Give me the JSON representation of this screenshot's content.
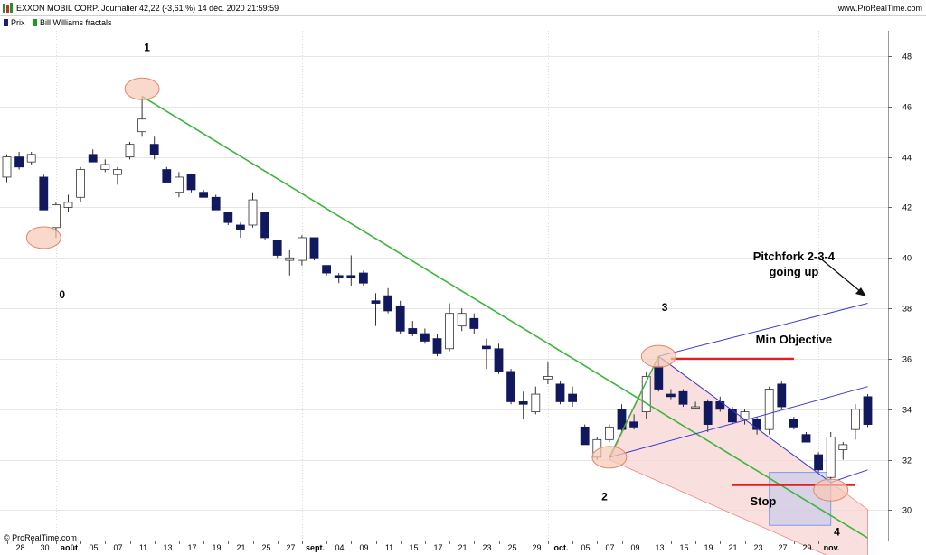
{
  "header": {
    "title": "EXXON MOBIL CORP. Journalier 42,22 (-3,61 %) 14 déc. 2020 21:59:59",
    "site": "www.ProRealTime.com",
    "legend": [
      {
        "label": "Prix",
        "color": "#1a1f6e"
      },
      {
        "label": "Bill Williams fractals",
        "color": "#1e9a1e"
      }
    ]
  },
  "footer": {
    "copyright": "© ProRealTime.com"
  },
  "colors": {
    "bull_body": "#ffffff",
    "bear_body": "#10185e",
    "trendline": "#3cb53c",
    "pitchfork": "#3a3ad0",
    "level": "#e02020",
    "fractal_fill": "#f7c9b6",
    "zone_fill": "#f8d4d4",
    "stop_box": "#b8c6f0"
  },
  "chart_data": {
    "type": "candlestick",
    "ylim": [
      28.8,
      49.0
    ],
    "y_ticks": [
      30,
      32,
      34,
      36,
      38,
      40,
      42,
      44,
      46,
      48
    ],
    "x_ticks": [
      "28",
      "30",
      "août",
      "05",
      "07",
      "11",
      "13",
      "17",
      "19",
      "21",
      "25",
      "27",
      "sept.",
      "04",
      "09",
      "11",
      "15",
      "17",
      "21",
      "23",
      "25",
      "29",
      "oct.",
      "05",
      "07",
      "09",
      "13",
      "15",
      "19",
      "21",
      "23",
      "27",
      "29",
      "nov."
    ],
    "candles": [
      {
        "o": 43.2,
        "h": 44.1,
        "l": 43.0,
        "c": 44.0
      },
      {
        "o": 44.0,
        "h": 44.2,
        "l": 43.5,
        "c": 43.6
      },
      {
        "o": 43.8,
        "h": 44.2,
        "l": 43.7,
        "c": 44.1
      },
      {
        "o": 43.2,
        "h": 43.3,
        "l": 41.9,
        "c": 41.9
      },
      {
        "o": 41.2,
        "h": 42.2,
        "l": 40.8,
        "c": 42.1
      },
      {
        "o": 42.0,
        "h": 42.5,
        "l": 41.8,
        "c": 42.2
      },
      {
        "o": 42.4,
        "h": 43.6,
        "l": 42.2,
        "c": 43.5
      },
      {
        "o": 44.1,
        "h": 44.3,
        "l": 43.8,
        "c": 43.8
      },
      {
        "o": 43.5,
        "h": 43.9,
        "l": 43.4,
        "c": 43.7
      },
      {
        "o": 43.3,
        "h": 43.6,
        "l": 42.9,
        "c": 43.5
      },
      {
        "o": 44.0,
        "h": 44.6,
        "l": 43.9,
        "c": 44.5
      },
      {
        "o": 45.0,
        "h": 46.4,
        "l": 44.8,
        "c": 45.5
      },
      {
        "o": 44.5,
        "h": 44.8,
        "l": 43.9,
        "c": 44.1
      },
      {
        "o": 43.5,
        "h": 43.6,
        "l": 43.0,
        "c": 43.0
      },
      {
        "o": 42.6,
        "h": 43.4,
        "l": 42.4,
        "c": 43.2
      },
      {
        "o": 43.3,
        "h": 43.3,
        "l": 42.6,
        "c": 42.7
      },
      {
        "o": 42.6,
        "h": 42.7,
        "l": 42.4,
        "c": 42.4
      },
      {
        "o": 42.4,
        "h": 42.5,
        "l": 41.9,
        "c": 41.9
      },
      {
        "o": 41.8,
        "h": 41.8,
        "l": 41.3,
        "c": 41.4
      },
      {
        "o": 41.3,
        "h": 41.4,
        "l": 40.8,
        "c": 41.1
      },
      {
        "o": 41.3,
        "h": 42.6,
        "l": 41.2,
        "c": 42.3
      },
      {
        "o": 41.8,
        "h": 41.8,
        "l": 40.7,
        "c": 40.8
      },
      {
        "o": 40.7,
        "h": 40.7,
        "l": 40.0,
        "c": 40.1
      },
      {
        "o": 39.9,
        "h": 40.3,
        "l": 39.3,
        "c": 40.0
      },
      {
        "o": 39.9,
        "h": 40.9,
        "l": 39.7,
        "c": 40.8
      },
      {
        "o": 40.8,
        "h": 40.8,
        "l": 39.9,
        "c": 40.0
      },
      {
        "o": 39.7,
        "h": 39.7,
        "l": 39.3,
        "c": 39.4
      },
      {
        "o": 39.3,
        "h": 39.4,
        "l": 39.0,
        "c": 39.2
      },
      {
        "o": 39.3,
        "h": 40.1,
        "l": 38.9,
        "c": 39.2
      },
      {
        "o": 39.4,
        "h": 39.5,
        "l": 38.9,
        "c": 39.0
      },
      {
        "o": 38.3,
        "h": 38.6,
        "l": 37.3,
        "c": 38.2
      },
      {
        "o": 38.5,
        "h": 38.8,
        "l": 37.8,
        "c": 37.9
      },
      {
        "o": 38.1,
        "h": 38.3,
        "l": 37.0,
        "c": 37.1
      },
      {
        "o": 37.2,
        "h": 37.5,
        "l": 36.9,
        "c": 37.0
      },
      {
        "o": 37.0,
        "h": 37.2,
        "l": 36.6,
        "c": 36.7
      },
      {
        "o": 36.8,
        "h": 37.0,
        "l": 36.1,
        "c": 36.2
      },
      {
        "o": 36.4,
        "h": 38.2,
        "l": 36.3,
        "c": 37.8
      },
      {
        "o": 37.3,
        "h": 38.0,
        "l": 37.1,
        "c": 37.8
      },
      {
        "o": 37.6,
        "h": 37.8,
        "l": 37.0,
        "c": 37.2
      },
      {
        "o": 36.5,
        "h": 36.8,
        "l": 35.6,
        "c": 36.4
      },
      {
        "o": 36.4,
        "h": 36.6,
        "l": 35.4,
        "c": 35.5
      },
      {
        "o": 35.5,
        "h": 35.6,
        "l": 34.2,
        "c": 34.3
      },
      {
        "o": 34.3,
        "h": 34.7,
        "l": 33.6,
        "c": 34.2
      },
      {
        "o": 33.9,
        "h": 34.9,
        "l": 33.8,
        "c": 34.6
      },
      {
        "o": 35.2,
        "h": 35.9,
        "l": 35.0,
        "c": 35.3
      },
      {
        "o": 35.0,
        "h": 35.1,
        "l": 34.2,
        "c": 34.3
      },
      {
        "o": 34.6,
        "h": 34.9,
        "l": 34.1,
        "c": 34.3
      },
      {
        "o": 33.3,
        "h": 33.4,
        "l": 32.6,
        "c": 32.6
      },
      {
        "o": 32.1,
        "h": 32.9,
        "l": 32.0,
        "c": 32.8
      },
      {
        "o": 32.8,
        "h": 33.4,
        "l": 32.7,
        "c": 33.3
      },
      {
        "o": 34.0,
        "h": 34.2,
        "l": 33.1,
        "c": 33.2
      },
      {
        "o": 33.5,
        "h": 33.8,
        "l": 33.2,
        "c": 33.3
      },
      {
        "o": 33.9,
        "h": 35.5,
        "l": 33.6,
        "c": 35.3
      },
      {
        "o": 35.7,
        "h": 36.1,
        "l": 34.7,
        "c": 34.8
      },
      {
        "o": 34.6,
        "h": 34.8,
        "l": 34.4,
        "c": 34.5
      },
      {
        "o": 34.7,
        "h": 34.8,
        "l": 34.1,
        "c": 34.2
      },
      {
        "o": 34.1,
        "h": 34.3,
        "l": 34.0,
        "c": 34.1
      },
      {
        "o": 34.3,
        "h": 34.4,
        "l": 33.1,
        "c": 33.4
      },
      {
        "o": 34.3,
        "h": 34.5,
        "l": 33.9,
        "c": 34.0
      },
      {
        "o": 34.0,
        "h": 34.1,
        "l": 33.4,
        "c": 33.5
      },
      {
        "o": 33.6,
        "h": 34.0,
        "l": 33.4,
        "c": 33.9
      },
      {
        "o": 33.6,
        "h": 33.7,
        "l": 33.0,
        "c": 33.2
      },
      {
        "o": 33.2,
        "h": 34.9,
        "l": 33.0,
        "c": 34.8
      },
      {
        "o": 35.0,
        "h": 35.1,
        "l": 34.0,
        "c": 34.1
      },
      {
        "o": 33.6,
        "h": 33.7,
        "l": 33.2,
        "c": 33.3
      },
      {
        "o": 33.0,
        "h": 33.1,
        "l": 32.7,
        "c": 32.7
      },
      {
        "o": 32.2,
        "h": 32.3,
        "l": 31.5,
        "c": 31.6
      },
      {
        "o": 31.3,
        "h": 33.1,
        "l": 31.2,
        "c": 32.9
      },
      {
        "o": 32.4,
        "h": 32.7,
        "l": 32.0,
        "c": 32.6
      },
      {
        "o": 33.2,
        "h": 34.2,
        "l": 32.8,
        "c": 34.0
      },
      {
        "o": 34.5,
        "h": 34.6,
        "l": 33.3,
        "c": 33.4
      }
    ],
    "trendline": [
      [
        11,
        46.4
      ],
      [
        70,
        28.9
      ]
    ],
    "pitchfork_points": {
      "p2": [
        49,
        32.1
      ],
      "p3": [
        53,
        36.1
      ],
      "p4": [
        67,
        31.1
      ]
    },
    "pitchfork_upper_end": [
      70,
      38.2
    ],
    "pitchfork_median_end": [
      70,
      34.9
    ],
    "pitchfork_lower_end": [
      70,
      31.6
    ],
    "zone_bottom": [
      [
        49,
        32.0
      ],
      [
        70,
        27.5
      ]
    ],
    "min_objective_level": {
      "value": 36.0,
      "from": 54,
      "to": 64
    },
    "stop_level": {
      "value": 31.0,
      "from": 59,
      "to": 69
    },
    "stop_box": {
      "x0": 62,
      "x1": 67,
      "y0": 29.4,
      "y1": 31.5
    },
    "fractal_markers": [
      {
        "x": 11,
        "y": 46.7
      },
      {
        "x": 3,
        "y": 40.8
      },
      {
        "x": 49,
        "y": 32.1
      },
      {
        "x": 53,
        "y": 36.1
      },
      {
        "x": 67,
        "y": 30.8
      }
    ],
    "wave_labels": [
      {
        "text": "0",
        "x": 4.5,
        "y": 38.4
      },
      {
        "text": "1",
        "x": 11.4,
        "y": 48.2
      },
      {
        "text": "2",
        "x": 48.6,
        "y": 30.4
      },
      {
        "text": "3",
        "x": 53.5,
        "y": 37.9
      },
      {
        "text": "4",
        "x": 67.5,
        "y": 29.0
      }
    ],
    "annotations": [
      {
        "key": "pitchfork_line1",
        "text": "Pitchfork 2-3-4",
        "x": 64,
        "y": 39.9
      },
      {
        "key": "pitchfork_line2",
        "text": "going up",
        "x": 64,
        "y": 39.3
      },
      {
        "key": "min_objective",
        "text": "Min Objective",
        "x": 64,
        "y": 36.6
      },
      {
        "key": "stop",
        "text": "Stop",
        "x": 61.5,
        "y": 30.2
      }
    ]
  }
}
